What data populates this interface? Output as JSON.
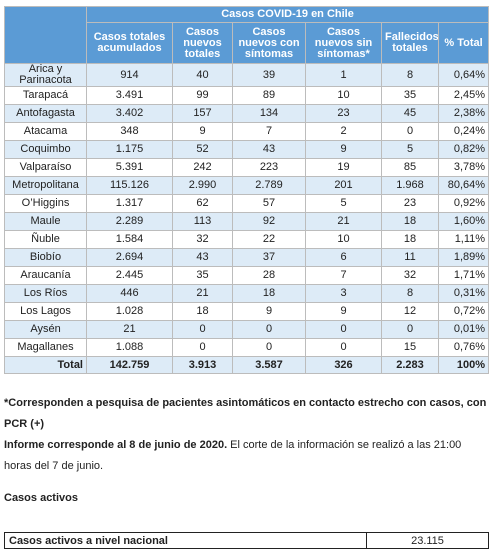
{
  "table": {
    "title": "Casos COVID-19 en Chile",
    "columns": [
      "Casos totales acumulados",
      "Casos nuevos totales",
      "Casos nuevos con síntomas",
      "Casos nuevos sin síntomas*",
      "Fallecidos totales",
      "% Total"
    ],
    "rows": [
      {
        "region": "Arica y Parinacota",
        "total": "914",
        "nuevos": "40",
        "con_sintomas": "39",
        "sin_sintomas": "1",
        "fallecidos": "8",
        "pct": "0,64%"
      },
      {
        "region": "Tarapacá",
        "total": "3.491",
        "nuevos": "99",
        "con_sintomas": "89",
        "sin_sintomas": "10",
        "fallecidos": "35",
        "pct": "2,45%"
      },
      {
        "region": "Antofagasta",
        "total": "3.402",
        "nuevos": "157",
        "con_sintomas": "134",
        "sin_sintomas": "23",
        "fallecidos": "45",
        "pct": "2,38%"
      },
      {
        "region": "Atacama",
        "total": "348",
        "nuevos": "9",
        "con_sintomas": "7",
        "sin_sintomas": "2",
        "fallecidos": "0",
        "pct": "0,24%"
      },
      {
        "region": "Coquimbo",
        "total": "1.175",
        "nuevos": "52",
        "con_sintomas": "43",
        "sin_sintomas": "9",
        "fallecidos": "5",
        "pct": "0,82%"
      },
      {
        "region": "Valparaíso",
        "total": "5.391",
        "nuevos": "242",
        "con_sintomas": "223",
        "sin_sintomas": "19",
        "fallecidos": "85",
        "pct": "3,78%"
      },
      {
        "region": "Metropolitana",
        "total": "115.126",
        "nuevos": "2.990",
        "con_sintomas": "2.789",
        "sin_sintomas": "201",
        "fallecidos": "1.968",
        "pct": "80,64%"
      },
      {
        "region": "O’Higgins",
        "total": "1.317",
        "nuevos": "62",
        "con_sintomas": "57",
        "sin_sintomas": "5",
        "fallecidos": "23",
        "pct": "0,92%"
      },
      {
        "region": "Maule",
        "total": "2.289",
        "nuevos": "113",
        "con_sintomas": "92",
        "sin_sintomas": "21",
        "fallecidos": "18",
        "pct": "1,60%"
      },
      {
        "region": "Ñuble",
        "total": "1.584",
        "nuevos": "32",
        "con_sintomas": "22",
        "sin_sintomas": "10",
        "fallecidos": "18",
        "pct": "1,11%"
      },
      {
        "region": "Biobío",
        "total": "2.694",
        "nuevos": "43",
        "con_sintomas": "37",
        "sin_sintomas": "6",
        "fallecidos": "11",
        "pct": "1,89%"
      },
      {
        "region": "Araucanía",
        "total": "2.445",
        "nuevos": "35",
        "con_sintomas": "28",
        "sin_sintomas": "7",
        "fallecidos": "32",
        "pct": "1,71%"
      },
      {
        "region": "Los Ríos",
        "total": "446",
        "nuevos": "21",
        "con_sintomas": "18",
        "sin_sintomas": "3",
        "fallecidos": "8",
        "pct": "0,31%"
      },
      {
        "region": "Los Lagos",
        "total": "1.028",
        "nuevos": "18",
        "con_sintomas": "9",
        "sin_sintomas": "9",
        "fallecidos": "12",
        "pct": "0,72%"
      },
      {
        "region": "Aysén",
        "total": "21",
        "nuevos": "0",
        "con_sintomas": "0",
        "sin_sintomas": "0",
        "fallecidos": "0",
        "pct": "0,01%"
      },
      {
        "region": "Magallanes",
        "total": "1.088",
        "nuevos": "0",
        "con_sintomas": "0",
        "sin_sintomas": "0",
        "fallecidos": "15",
        "pct": "0,76%"
      }
    ],
    "total_row": {
      "label": "Total",
      "total": "142.759",
      "nuevos": "3.913",
      "con_sintomas": "3.587",
      "sin_sintomas": "326",
      "fallecidos": "2.283",
      "pct": "100%"
    }
  },
  "notes": {
    "footnote": "*Corresponden a pesquisa de pacientes asintomáticos en contacto estrecho con casos, con PCR (+)",
    "report_bold": "Informe corresponde al 8 de junio de 2020.",
    "report_rest": " El corte de la información se realizó a las 21:00 horas del 7 de junio."
  },
  "active": {
    "title": "Casos activos",
    "label": "Casos activos a nivel nacional",
    "value": "23.115"
  },
  "colors": {
    "header_bg": "#5b9bd5",
    "stripe_bg": "#ddebf7"
  }
}
